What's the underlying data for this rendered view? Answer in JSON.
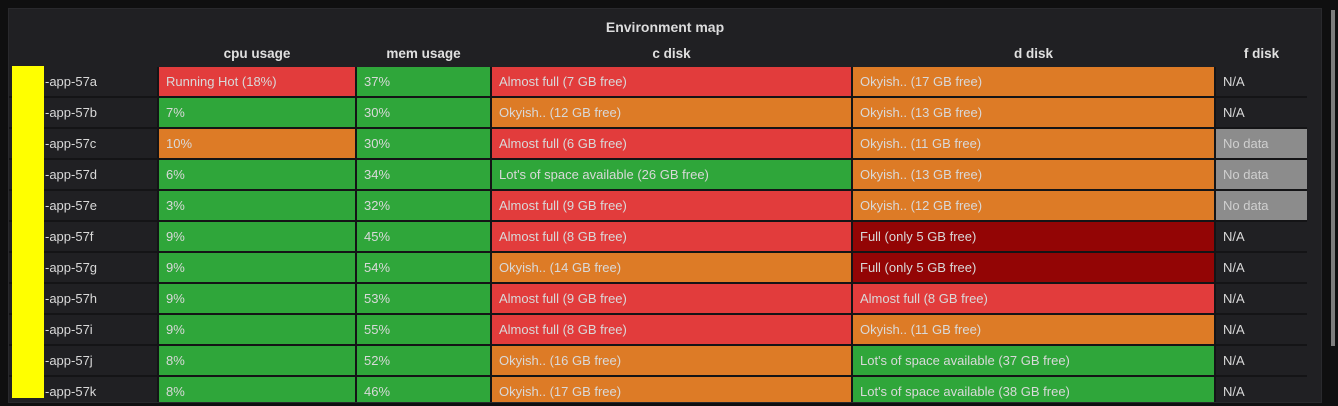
{
  "panel": {
    "title": "Environment map"
  },
  "table": {
    "columns": [
      {
        "key": "cpu",
        "label": "cpu usage"
      },
      {
        "key": "mem",
        "label": "mem usage"
      },
      {
        "key": "c_disk",
        "label": "c disk"
      },
      {
        "key": "d_disk",
        "label": "d disk"
      },
      {
        "key": "f_disk",
        "label": "f disk"
      }
    ],
    "rows": [
      {
        "name": "-app-57a",
        "cpu": {
          "text": "Running Hot (18%)",
          "level": "crit"
        },
        "mem": {
          "text": "37%",
          "level": "ok"
        },
        "c_disk": {
          "text": "Almost full (7 GB free)",
          "level": "crit"
        },
        "d_disk": {
          "text": "Okyish.. (17 GB free)",
          "level": "warn"
        },
        "f_disk": {
          "text": "N/A",
          "level": "na"
        }
      },
      {
        "name": "-app-57b",
        "cpu": {
          "text": "7%",
          "level": "ok"
        },
        "mem": {
          "text": "30%",
          "level": "ok"
        },
        "c_disk": {
          "text": "Okyish.. (12 GB free)",
          "level": "warn"
        },
        "d_disk": {
          "text": "Okyish.. (13 GB free)",
          "level": "warn"
        },
        "f_disk": {
          "text": "N/A",
          "level": "na"
        }
      },
      {
        "name": "-app-57c",
        "cpu": {
          "text": "10%",
          "level": "warn"
        },
        "mem": {
          "text": "30%",
          "level": "ok"
        },
        "c_disk": {
          "text": "Almost full (6 GB free)",
          "level": "crit"
        },
        "d_disk": {
          "text": "Okyish.. (11 GB free)",
          "level": "warn"
        },
        "f_disk": {
          "text": "No data",
          "level": "nodata"
        }
      },
      {
        "name": "-app-57d",
        "cpu": {
          "text": "6%",
          "level": "ok"
        },
        "mem": {
          "text": "34%",
          "level": "ok"
        },
        "c_disk": {
          "text": "Lot's of space available (26 GB free)",
          "level": "ok"
        },
        "d_disk": {
          "text": "Okyish.. (13 GB free)",
          "level": "warn"
        },
        "f_disk": {
          "text": "No data",
          "level": "nodata"
        }
      },
      {
        "name": "-app-57e",
        "cpu": {
          "text": "3%",
          "level": "ok"
        },
        "mem": {
          "text": "32%",
          "level": "ok"
        },
        "c_disk": {
          "text": "Almost full (9 GB free)",
          "level": "crit"
        },
        "d_disk": {
          "text": "Okyish.. (12 GB free)",
          "level": "warn"
        },
        "f_disk": {
          "text": "No data",
          "level": "nodata"
        }
      },
      {
        "name": "-app-57f",
        "cpu": {
          "text": "9%",
          "level": "ok"
        },
        "mem": {
          "text": "45%",
          "level": "ok"
        },
        "c_disk": {
          "text": "Almost full (8 GB free)",
          "level": "crit"
        },
        "d_disk": {
          "text": "Full (only 5 GB free)",
          "level": "full"
        },
        "f_disk": {
          "text": "N/A",
          "level": "na"
        }
      },
      {
        "name": "-app-57g",
        "cpu": {
          "text": "9%",
          "level": "ok"
        },
        "mem": {
          "text": "54%",
          "level": "ok"
        },
        "c_disk": {
          "text": "Okyish.. (14 GB free)",
          "level": "warn"
        },
        "d_disk": {
          "text": "Full (only 5 GB free)",
          "level": "full"
        },
        "f_disk": {
          "text": "N/A",
          "level": "na"
        }
      },
      {
        "name": "-app-57h",
        "cpu": {
          "text": "9%",
          "level": "ok"
        },
        "mem": {
          "text": "53%",
          "level": "ok"
        },
        "c_disk": {
          "text": "Almost full (9 GB free)",
          "level": "crit"
        },
        "d_disk": {
          "text": "Almost full (8 GB free)",
          "level": "crit"
        },
        "f_disk": {
          "text": "N/A",
          "level": "na"
        }
      },
      {
        "name": "-app-57i",
        "cpu": {
          "text": "9%",
          "level": "ok"
        },
        "mem": {
          "text": "55%",
          "level": "ok"
        },
        "c_disk": {
          "text": "Almost full (8 GB free)",
          "level": "crit"
        },
        "d_disk": {
          "text": "Okyish.. (11 GB free)",
          "level": "warn"
        },
        "f_disk": {
          "text": "N/A",
          "level": "na"
        }
      },
      {
        "name": "-app-57j",
        "cpu": {
          "text": "8%",
          "level": "ok"
        },
        "mem": {
          "text": "52%",
          "level": "ok"
        },
        "c_disk": {
          "text": "Okyish.. (16 GB free)",
          "level": "warn"
        },
        "d_disk": {
          "text": "Lot's of space available (37 GB free)",
          "level": "ok"
        },
        "f_disk": {
          "text": "N/A",
          "level": "na"
        }
      },
      {
        "name": "-app-57k",
        "cpu": {
          "text": "8%",
          "level": "ok"
        },
        "mem": {
          "text": "46%",
          "level": "ok"
        },
        "c_disk": {
          "text": "Okyish.. (17 GB free)",
          "level": "warn"
        },
        "d_disk": {
          "text": "Lot's of space available (38 GB free)",
          "level": "ok"
        },
        "f_disk": {
          "text": "N/A",
          "level": "na"
        }
      }
    ]
  },
  "colors": {
    "ok": "#2fa63a",
    "warn": "#dd7b26",
    "crit": "#e23c3c",
    "full": "#930505",
    "nodata_bg": "#8c8c8c",
    "nodata_text": "#cfcfcf",
    "redaction": "#ffff00",
    "cell_text": "#d9d9d9"
  }
}
